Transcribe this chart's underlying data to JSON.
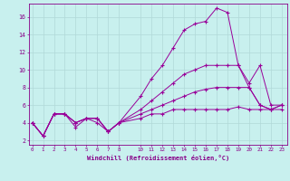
{
  "xlabel": "Windchill (Refroidissement éolien,°C)",
  "background_color": "#c8f0ee",
  "grid_color": "#b0d8d8",
  "line_color": "#990099",
  "x_ticks": [
    0,
    1,
    2,
    3,
    4,
    5,
    6,
    7,
    8,
    10,
    11,
    12,
    13,
    14,
    15,
    16,
    17,
    18,
    19,
    20,
    21,
    22,
    23
  ],
  "y_ticks": [
    2,
    4,
    6,
    8,
    10,
    12,
    14,
    16
  ],
  "ylim": [
    1.5,
    17.5
  ],
  "xlim": [
    -0.3,
    23.5
  ],
  "lines": [
    {
      "x": [
        0,
        1,
        2,
        3,
        4,
        5,
        6,
        7,
        8,
        10,
        11,
        12,
        13,
        14,
        15,
        16,
        17,
        18,
        19,
        20,
        21,
        22,
        23
      ],
      "y": [
        4.0,
        2.5,
        5.0,
        5.0,
        4.0,
        4.5,
        4.0,
        3.0,
        4.0,
        7.0,
        9.0,
        10.5,
        12.5,
        14.5,
        15.2,
        15.5,
        17.0,
        16.5,
        10.5,
        8.5,
        10.5,
        6.0,
        6.0
      ]
    },
    {
      "x": [
        0,
        1,
        2,
        3,
        4,
        5,
        6,
        7,
        8,
        10,
        11,
        12,
        13,
        14,
        15,
        16,
        17,
        18,
        19,
        20,
        21,
        22,
        23
      ],
      "y": [
        4.0,
        2.5,
        5.0,
        5.0,
        3.5,
        4.5,
        4.5,
        3.0,
        4.0,
        5.5,
        6.5,
        7.5,
        8.5,
        9.5,
        10.0,
        10.5,
        10.5,
        10.5,
        10.5,
        8.0,
        6.0,
        5.5,
        6.0
      ]
    },
    {
      "x": [
        0,
        1,
        2,
        3,
        4,
        5,
        6,
        7,
        8,
        10,
        11,
        12,
        13,
        14,
        15,
        16,
        17,
        18,
        19,
        20,
        21,
        22,
        23
      ],
      "y": [
        4.0,
        2.5,
        5.0,
        5.0,
        4.0,
        4.5,
        4.5,
        3.0,
        4.0,
        5.0,
        5.5,
        6.0,
        6.5,
        7.0,
        7.5,
        7.8,
        8.0,
        8.0,
        8.0,
        8.0,
        6.0,
        5.5,
        6.0
      ]
    },
    {
      "x": [
        0,
        1,
        2,
        3,
        4,
        5,
        6,
        7,
        8,
        10,
        11,
        12,
        13,
        14,
        15,
        16,
        17,
        18,
        19,
        20,
        21,
        22,
        23
      ],
      "y": [
        4.0,
        2.5,
        5.0,
        5.0,
        4.0,
        4.5,
        4.5,
        3.0,
        4.0,
        4.5,
        5.0,
        5.0,
        5.5,
        5.5,
        5.5,
        5.5,
        5.5,
        5.5,
        5.8,
        5.5,
        5.5,
        5.5,
        5.5
      ]
    }
  ]
}
